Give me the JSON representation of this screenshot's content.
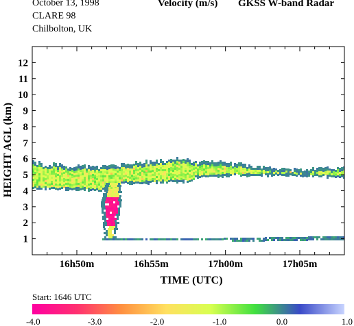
{
  "header": {
    "date": "October  13, 1998",
    "campaign": "CLARE 98",
    "site": "Chilbolton, UK",
    "variable": "Velocity (m/s)",
    "instrument": "GKSS  W-band Radar"
  },
  "colorbar": {
    "start_label": "Start: 1646 UTC",
    "colors": [
      "#ff00a0",
      "#ff3070",
      "#ff9040",
      "#ffe060",
      "#d8ff50",
      "#40e040",
      "#3a4ac8",
      "#c8d4ff"
    ]
  },
  "chart_data": {
    "type": "heatmap",
    "title": "Velocity (m/s)",
    "xlabel": "TIME (UTC)",
    "ylabel": "HEIGHT AGL (km)",
    "xlim": [
      "16h47m",
      "17h08m"
    ],
    "ylim": [
      0,
      13
    ],
    "x_ticks": [
      "16h50m",
      "16h55m",
      "17h00m",
      "17h05m"
    ],
    "y_ticks": [
      "1",
      "2",
      "3",
      "4",
      "5",
      "6",
      "7",
      "8",
      "9",
      "10",
      "11",
      "12"
    ],
    "colorbar_range": [
      -4.0,
      1.0
    ],
    "colorbar_ticks": [
      "-4.0",
      "-3.0",
      "-2.0",
      "-1.0",
      "0.0",
      "1.0"
    ],
    "features": [
      {
        "name": "cloud layer",
        "time_start": "16h47m",
        "time_end": "17h08m",
        "height_bottom_km": 4.5,
        "height_top_km": 5.9,
        "velocity_ms": -1.0
      },
      {
        "name": "fall streak",
        "time_start": "16h51m",
        "time_end": "16h53m",
        "height_bottom_km": 1.0,
        "height_top_km": 4.5,
        "velocity_ms": -3.5
      },
      {
        "name": "low layer",
        "time_start": "16h51m",
        "time_end": "17h08m",
        "height_bottom_km": 0.9,
        "height_top_km": 1.3,
        "velocity_ms": 0.0
      }
    ]
  }
}
